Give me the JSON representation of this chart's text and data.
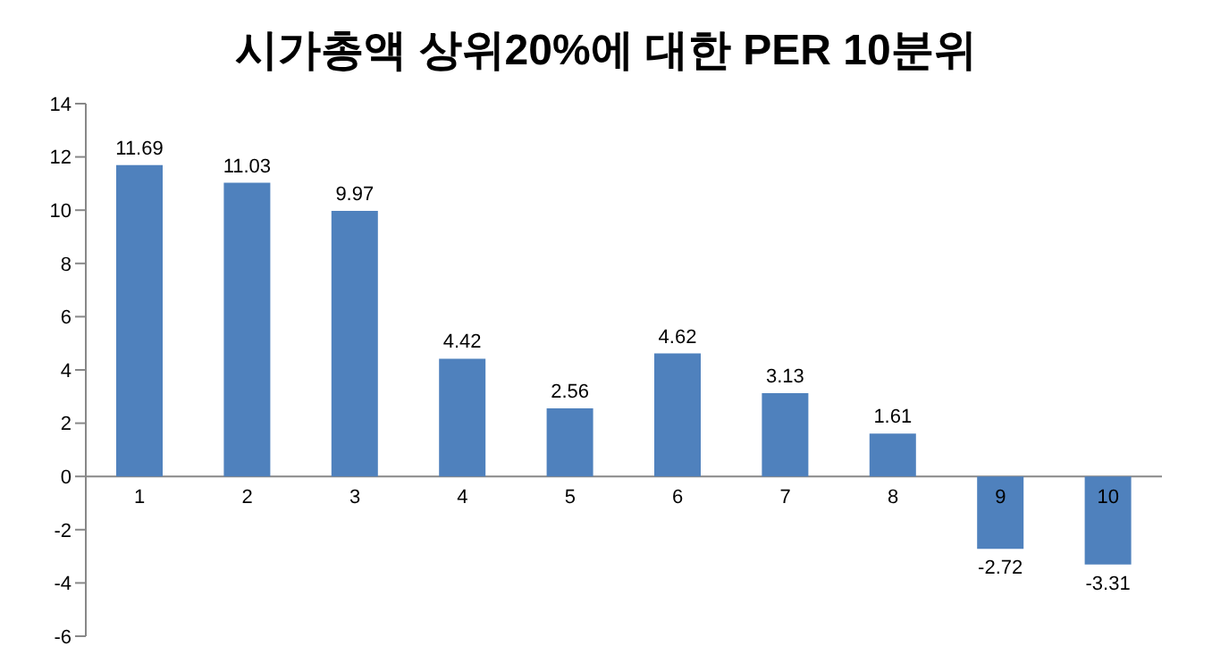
{
  "chart_data": {
    "type": "bar",
    "title": "시가총액 상위20%에 대한 PER 10분위",
    "categories": [
      "1",
      "2",
      "3",
      "4",
      "5",
      "6",
      "7",
      "8",
      "9",
      "10"
    ],
    "values": [
      11.69,
      11.03,
      9.97,
      4.42,
      2.56,
      4.62,
      3.13,
      1.61,
      -2.72,
      -3.31
    ],
    "color": "#4f81bd",
    "ylim": [
      -6,
      14
    ],
    "yticks": [
      -6,
      -4,
      -2,
      0,
      2,
      4,
      6,
      8,
      10,
      12,
      14
    ],
    "data_labels": true
  }
}
